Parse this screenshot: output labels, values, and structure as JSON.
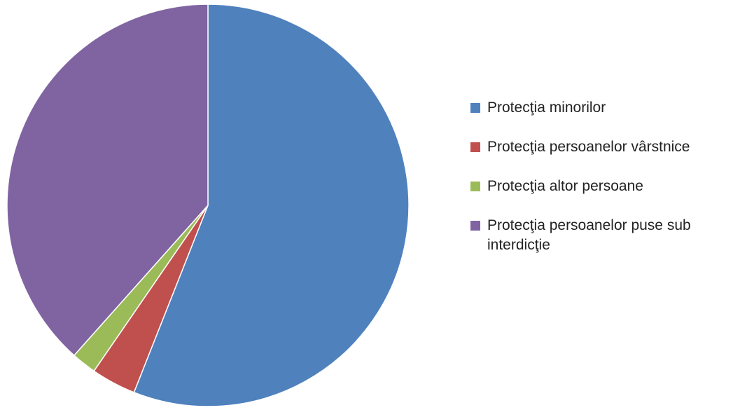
{
  "chart_data": {
    "type": "pie",
    "slices": [
      {
        "label": "Protecţia minorilor",
        "value": 56,
        "color": "#4F81BD"
      },
      {
        "label": "Protecţia persoanelor vârstnice",
        "value": 3.6,
        "color": "#C0504D"
      },
      {
        "label": "Protecţia altor persoane",
        "value": 2,
        "color": "#9BBB59"
      },
      {
        "label": "Protecţia persoanelor puse sub interdicţie",
        "value": 38.4,
        "color": "#8064A2"
      }
    ],
    "start_angle_deg": 0,
    "direction": "clockwise",
    "legend_position": "right"
  }
}
